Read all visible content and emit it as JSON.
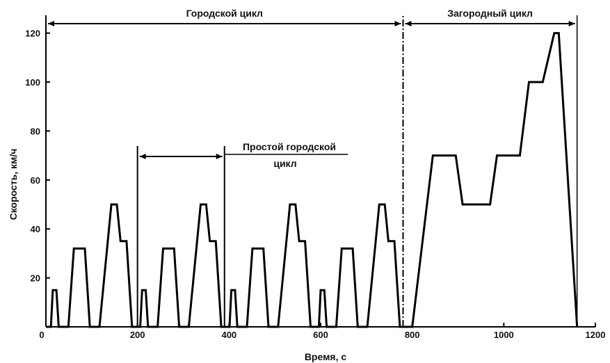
{
  "chart_data": {
    "type": "line",
    "title": "",
    "xlabel": "Время, с",
    "ylabel": "Скорость, км/ч",
    "xlim": [
      0,
      1200
    ],
    "ylim": [
      0,
      125
    ],
    "xticks": [
      0,
      200,
      400,
      600,
      800,
      1000,
      1200
    ],
    "yticks": [
      20,
      40,
      60,
      80,
      100,
      120
    ],
    "grid": false,
    "series": [
      {
        "values": [
          [
            0,
            0
          ],
          [
            11,
            0
          ],
          [
            15,
            15
          ],
          [
            23,
            15
          ],
          [
            28,
            0
          ],
          [
            49,
            0
          ],
          [
            61,
            32
          ],
          [
            85,
            32
          ],
          [
            96,
            0
          ],
          [
            117,
            0
          ],
          [
            143,
            50
          ],
          [
            155,
            50
          ],
          [
            163,
            35
          ],
          [
            176,
            35
          ],
          [
            188,
            0
          ],
          [
            206,
            0
          ],
          [
            210,
            15
          ],
          [
            218,
            15
          ],
          [
            223,
            0
          ],
          [
            244,
            0
          ],
          [
            256,
            32
          ],
          [
            280,
            32
          ],
          [
            291,
            0
          ],
          [
            312,
            0
          ],
          [
            338,
            50
          ],
          [
            350,
            50
          ],
          [
            358,
            35
          ],
          [
            371,
            35
          ],
          [
            383,
            0
          ],
          [
            401,
            0
          ],
          [
            405,
            15
          ],
          [
            413,
            15
          ],
          [
            418,
            0
          ],
          [
            439,
            0
          ],
          [
            451,
            32
          ],
          [
            475,
            32
          ],
          [
            486,
            0
          ],
          [
            507,
            0
          ],
          [
            533,
            50
          ],
          [
            545,
            50
          ],
          [
            553,
            35
          ],
          [
            566,
            35
          ],
          [
            578,
            0
          ],
          [
            596,
            0
          ],
          [
            600,
            15
          ],
          [
            608,
            15
          ],
          [
            613,
            0
          ],
          [
            634,
            0
          ],
          [
            646,
            32
          ],
          [
            670,
            32
          ],
          [
            681,
            0
          ],
          [
            702,
            0
          ],
          [
            728,
            50
          ],
          [
            740,
            50
          ],
          [
            748,
            35
          ],
          [
            761,
            35
          ],
          [
            773,
            0
          ],
          [
            800,
            0
          ],
          [
            845,
            70
          ],
          [
            895,
            70
          ],
          [
            910,
            50
          ],
          [
            970,
            50
          ],
          [
            985,
            70
          ],
          [
            1035,
            70
          ],
          [
            1055,
            100
          ],
          [
            1085,
            100
          ],
          [
            1110,
            120
          ],
          [
            1120,
            120
          ],
          [
            1160,
            0
          ]
        ]
      }
    ],
    "annotations": [
      {
        "id": "city",
        "text": "Городской цикл",
        "x_from": 0,
        "x_to": 780,
        "y": 126
      },
      {
        "id": "extra_urban",
        "text": "Загородный цикл",
        "x_from": 780,
        "x_to": 1160,
        "y": 126
      },
      {
        "id": "simple_city_line1",
        "text": "Простой городской",
        "x_from": 200,
        "x_to": 390,
        "y": 72
      },
      {
        "id": "simple_city_line2",
        "text": "цикл",
        "x_from": 200,
        "x_to": 390,
        "y": 72
      }
    ],
    "colors": {
      "line": "#000000",
      "axis": "#000000",
      "text": "#111111",
      "background": "#ffffff"
    }
  }
}
